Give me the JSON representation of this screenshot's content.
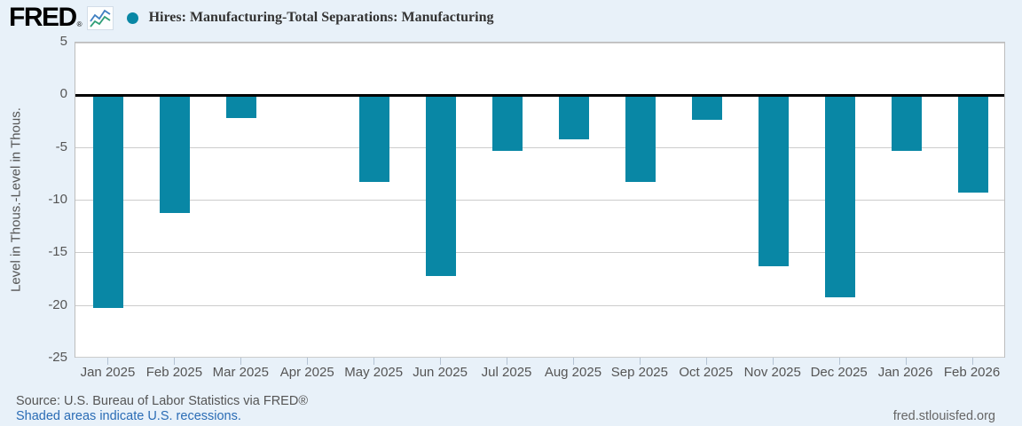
{
  "header": {
    "logo_text": "FRED",
    "logo_reg": "®",
    "title": "Hires: Manufacturing-Total Separations: Manufacturing"
  },
  "chart_data": {
    "type": "bar",
    "title": "Hires: Manufacturing-Total Separations: Manufacturing",
    "series_name": "Hires: Manufacturing-Total Separations: Manufacturing",
    "xlabel": "",
    "ylabel": "Level in Thous.-Level in Thous.",
    "ylim": [
      -25,
      5
    ],
    "yticks": [
      5,
      0,
      -5,
      -10,
      -15,
      -20,
      -25
    ],
    "grid": true,
    "legend_position": "top-left",
    "categories": [
      "Jan 2025",
      "Feb 2025",
      "Mar 2025",
      "Apr 2025",
      "May 2025",
      "Jun 2025",
      "Jul 2025",
      "Aug 2025",
      "Sep 2025",
      "Oct 2025",
      "Nov 2025",
      "Dec 2025",
      "Jan 2026",
      "Feb 2026"
    ],
    "values": [
      -20.2,
      -11.2,
      -2.2,
      0,
      -8.2,
      -17.2,
      -5.3,
      -4.2,
      -8.2,
      -2.3,
      -16.2,
      -19.2,
      -5.3,
      -9.2
    ],
    "bar_color": "#0987a5",
    "zero_line_color": "#000000"
  },
  "footer": {
    "source": "Source: U.S. Bureau of Labor Statistics via FRED®",
    "recessions_note": "Shaded areas indicate U.S. recessions.",
    "site_link": "fred.stlouisfed.org"
  },
  "icons": {
    "sparkline": "sparkline-icon",
    "legend_marker": "series-marker-dot"
  },
  "colors": {
    "background": "#e8f1f9",
    "plot_background": "#ffffff",
    "bar": "#0987a5",
    "gridline": "#cccccc",
    "plot_border": "#bdbdbd",
    "axis_text": "#555555",
    "title_text": "#333333",
    "link_blue": "#2a6cb5",
    "footer_gray": "#555555"
  }
}
